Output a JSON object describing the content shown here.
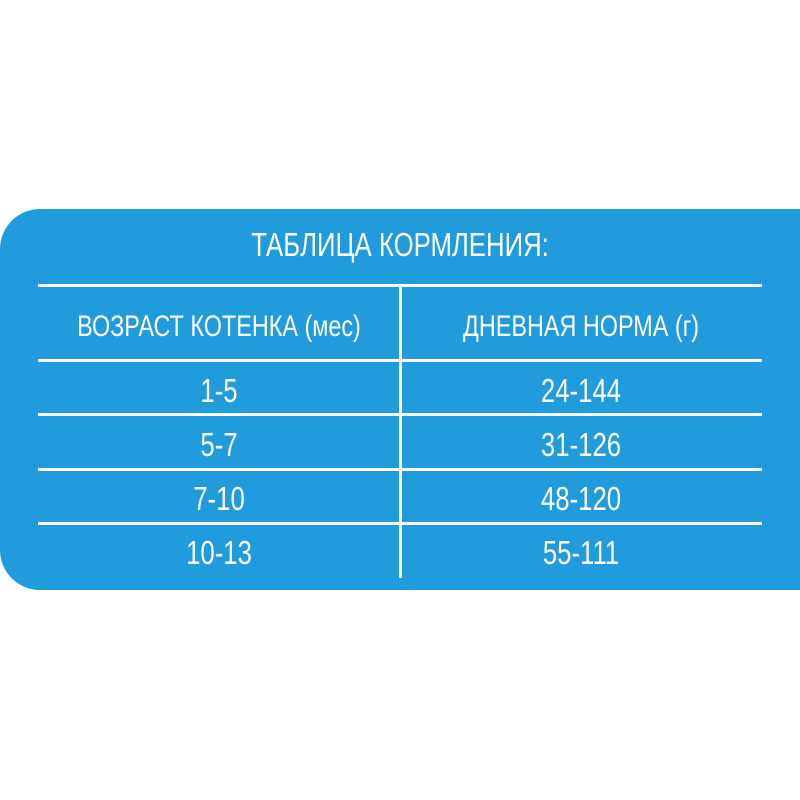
{
  "panel_color": "#209bdc",
  "title": "ТАБЛИЦА КОРМЛЕНИЯ:",
  "headers": [
    "ВОЗРАСТ КОТЕНКА (мес)",
    "ДНЕВНАЯ НОРМА (г)"
  ],
  "rows": [
    [
      "1-5",
      "24-144"
    ],
    [
      "5-7",
      "31-126"
    ],
    [
      "7-10",
      "48-120"
    ],
    [
      "10-13",
      "55-111"
    ]
  ]
}
